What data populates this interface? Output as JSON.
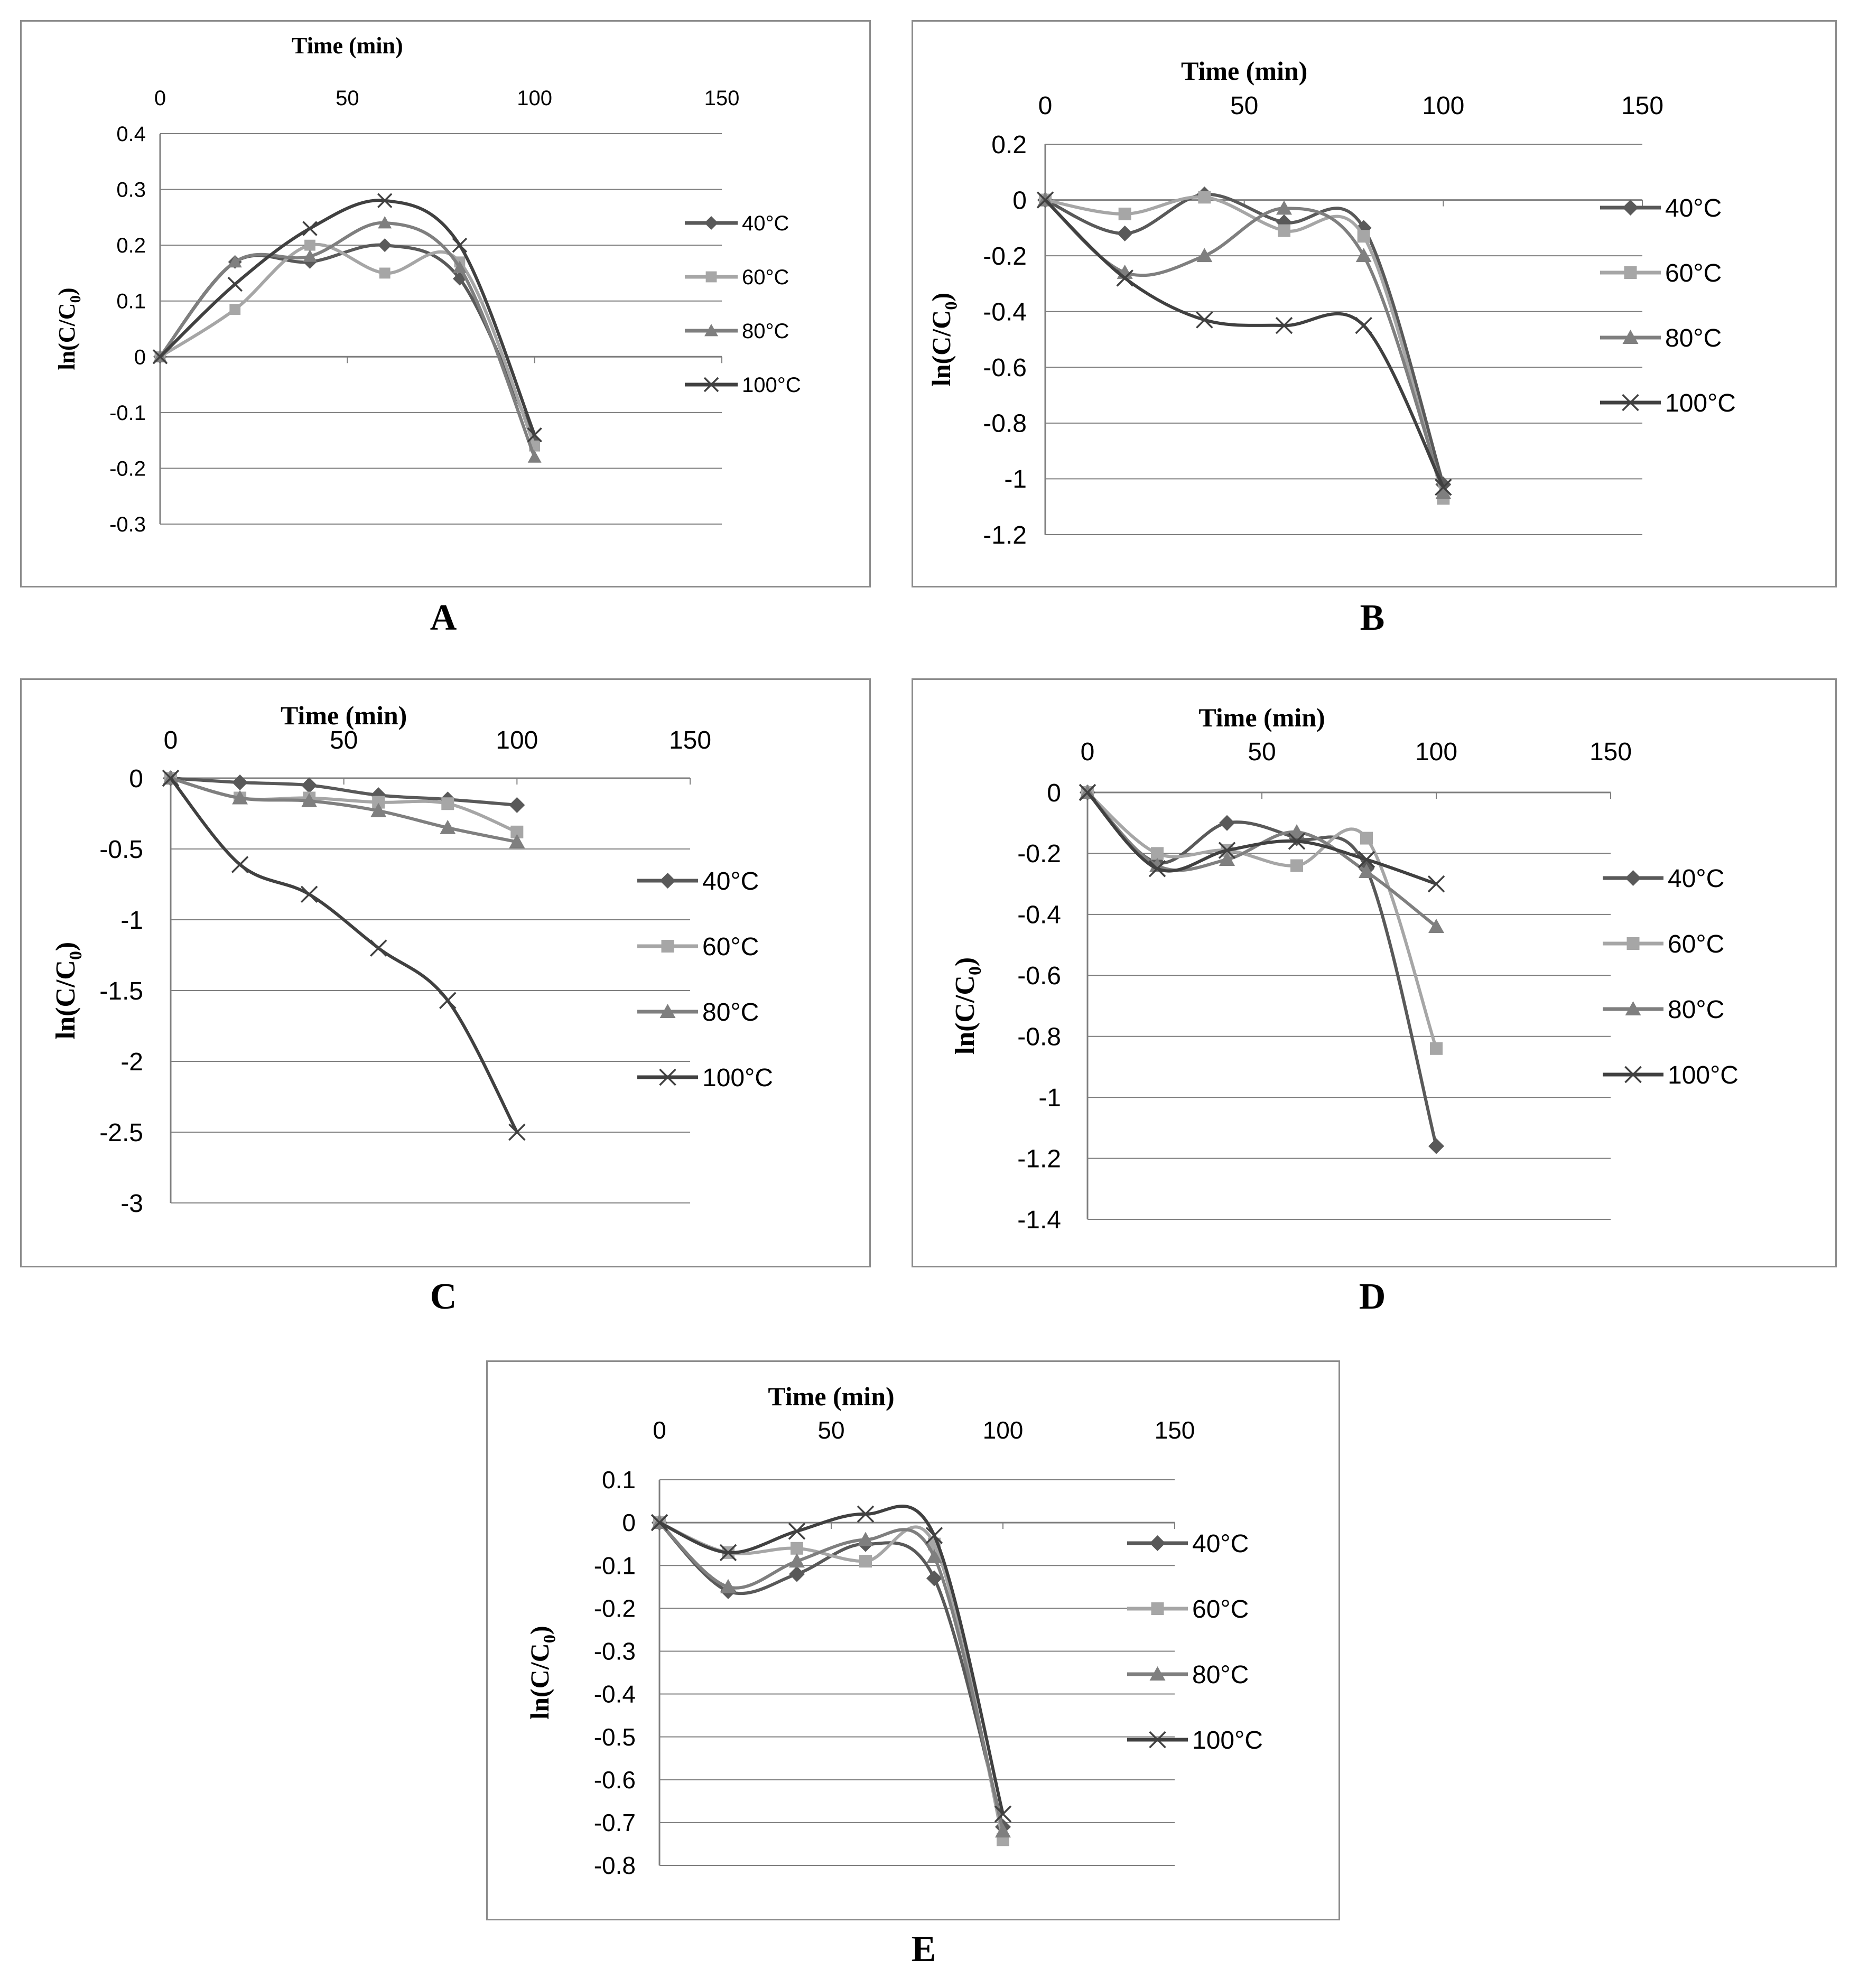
{
  "colors": {
    "axis": "#7f7f7f",
    "grid": "#7f7f7f",
    "text": "#000000",
    "series": [
      "#595959",
      "#a6a6a6",
      "#7f7f7f",
      "#404040"
    ]
  },
  "series_names": [
    "40°C",
    "60°C",
    "80°C",
    "100°C"
  ],
  "markers": [
    "diamond",
    "square",
    "triangle",
    "x"
  ],
  "chart_data": [
    {
      "panel_label": "A",
      "type": "line",
      "xlabel": "Time (min)",
      "ylabel": "ln(C/C0)",
      "xlim": [
        0,
        150
      ],
      "xticks": [
        "0",
        "50",
        "100",
        "150"
      ],
      "ylim": [
        -0.3,
        0.4
      ],
      "yticks": [
        "0.4",
        "0.3",
        "0.2",
        "0.1",
        "0",
        "-0.1",
        "-0.2",
        "-0.3"
      ],
      "x": [
        0,
        20,
        40,
        60,
        80,
        100
      ],
      "series": [
        {
          "name": "40°C",
          "values": [
            0,
            0.17,
            0.17,
            0.2,
            0.14,
            -0.15
          ]
        },
        {
          "name": "60°C",
          "values": [
            0,
            0.085,
            0.2,
            0.15,
            0.17,
            -0.16
          ]
        },
        {
          "name": "80°C",
          "values": [
            0,
            0.17,
            0.18,
            0.24,
            0.16,
            -0.18
          ]
        },
        {
          "name": "100°C",
          "values": [
            0,
            0.13,
            0.23,
            0.28,
            0.2,
            -0.14
          ]
        }
      ]
    },
    {
      "panel_label": "B",
      "type": "line",
      "xlabel": "Time (min)",
      "ylabel": "ln(C/C0)",
      "xlim": [
        0,
        150
      ],
      "xticks": [
        "0",
        "50",
        "100",
        "150"
      ],
      "ylim": [
        -1.2,
        0.2
      ],
      "yticks": [
        "0.2",
        "0",
        "-0.2",
        "-0.4",
        "-0.6",
        "-0.8",
        "-1",
        "-1.2"
      ],
      "x": [
        0,
        20,
        40,
        60,
        80,
        100
      ],
      "series": [
        {
          "name": "40°C",
          "values": [
            0,
            -0.12,
            0.02,
            -0.08,
            -0.1,
            -1.02
          ]
        },
        {
          "name": "60°C",
          "values": [
            0,
            -0.05,
            0.01,
            -0.11,
            -0.13,
            -1.07
          ]
        },
        {
          "name": "80°C",
          "values": [
            0,
            -0.26,
            -0.2,
            -0.03,
            -0.2,
            -1.05
          ]
        },
        {
          "name": "100°C",
          "values": [
            0,
            -0.28,
            -0.43,
            -0.45,
            -0.45,
            -1.03
          ]
        }
      ]
    },
    {
      "panel_label": "C",
      "type": "line",
      "xlabel": "Time (min)",
      "ylabel": "ln(C/C0)",
      "xlim": [
        0,
        150
      ],
      "xticks": [
        "0",
        "50",
        "100",
        "150"
      ],
      "ylim": [
        -3,
        0
      ],
      "yticks": [
        "0",
        "-0.5",
        "-1",
        "-1.5",
        "-2",
        "-2.5",
        "-3"
      ],
      "x": [
        0,
        20,
        40,
        60,
        80,
        100
      ],
      "series": [
        {
          "name": "40°C",
          "values": [
            0,
            -0.03,
            -0.05,
            -0.12,
            -0.15,
            -0.19
          ]
        },
        {
          "name": "60°C",
          "values": [
            0,
            -0.14,
            -0.14,
            -0.17,
            -0.18,
            -0.38
          ]
        },
        {
          "name": "80°C",
          "values": [
            0,
            -0.14,
            -0.16,
            -0.23,
            -0.35,
            -0.45
          ]
        },
        {
          "name": "100°C",
          "values": [
            0,
            -0.61,
            -0.82,
            -1.2,
            -1.57,
            -2.5
          ]
        }
      ]
    },
    {
      "panel_label": "D",
      "type": "line",
      "xlabel": "Time (min)",
      "ylabel": "ln(C/C0)",
      "xlim": [
        0,
        150
      ],
      "xticks": [
        "0",
        "50",
        "100",
        "150"
      ],
      "ylim": [
        -1.4,
        0
      ],
      "yticks": [
        "0",
        "-0.2",
        "-0.4",
        "-0.6",
        "-0.8",
        "-1",
        "-1.2",
        "-1.4"
      ],
      "x": [
        0,
        20,
        40,
        60,
        80,
        100
      ],
      "series": [
        {
          "name": "40°C",
          "values": [
            0,
            -0.23,
            -0.1,
            -0.15,
            -0.25,
            -1.16
          ]
        },
        {
          "name": "60°C",
          "values": [
            0,
            -0.2,
            -0.19,
            -0.24,
            -0.15,
            -0.84
          ]
        },
        {
          "name": "80°C",
          "values": [
            0,
            -0.24,
            -0.22,
            -0.13,
            -0.26,
            -0.44
          ]
        },
        {
          "name": "100°C",
          "values": [
            0,
            -0.25,
            -0.19,
            -0.16,
            -0.22,
            -0.3
          ]
        }
      ]
    },
    {
      "panel_label": "E",
      "type": "line",
      "xlabel": "Time (min)",
      "ylabel": "ln(C/C0)",
      "xlim": [
        0,
        150
      ],
      "xticks": [
        "0",
        "50",
        "100",
        "150"
      ],
      "ylim": [
        -0.8,
        0.1
      ],
      "yticks": [
        "0.1",
        "0",
        "-0.1",
        "-0.2",
        "-0.3",
        "-0.4",
        "-0.5",
        "-0.6",
        "-0.7",
        "-0.8"
      ],
      "x": [
        0,
        20,
        40,
        60,
        80,
        100
      ],
      "series": [
        {
          "name": "40°C",
          "values": [
            0,
            -0.16,
            -0.12,
            -0.05,
            -0.13,
            -0.71
          ]
        },
        {
          "name": "60°C",
          "values": [
            0,
            -0.07,
            -0.06,
            -0.09,
            -0.05,
            -0.74
          ]
        },
        {
          "name": "80°C",
          "values": [
            0,
            -0.15,
            -0.09,
            -0.04,
            -0.08,
            -0.72
          ]
        },
        {
          "name": "100°C",
          "values": [
            0,
            -0.07,
            -0.02,
            0.02,
            -0.03,
            -0.68
          ]
        }
      ]
    }
  ]
}
